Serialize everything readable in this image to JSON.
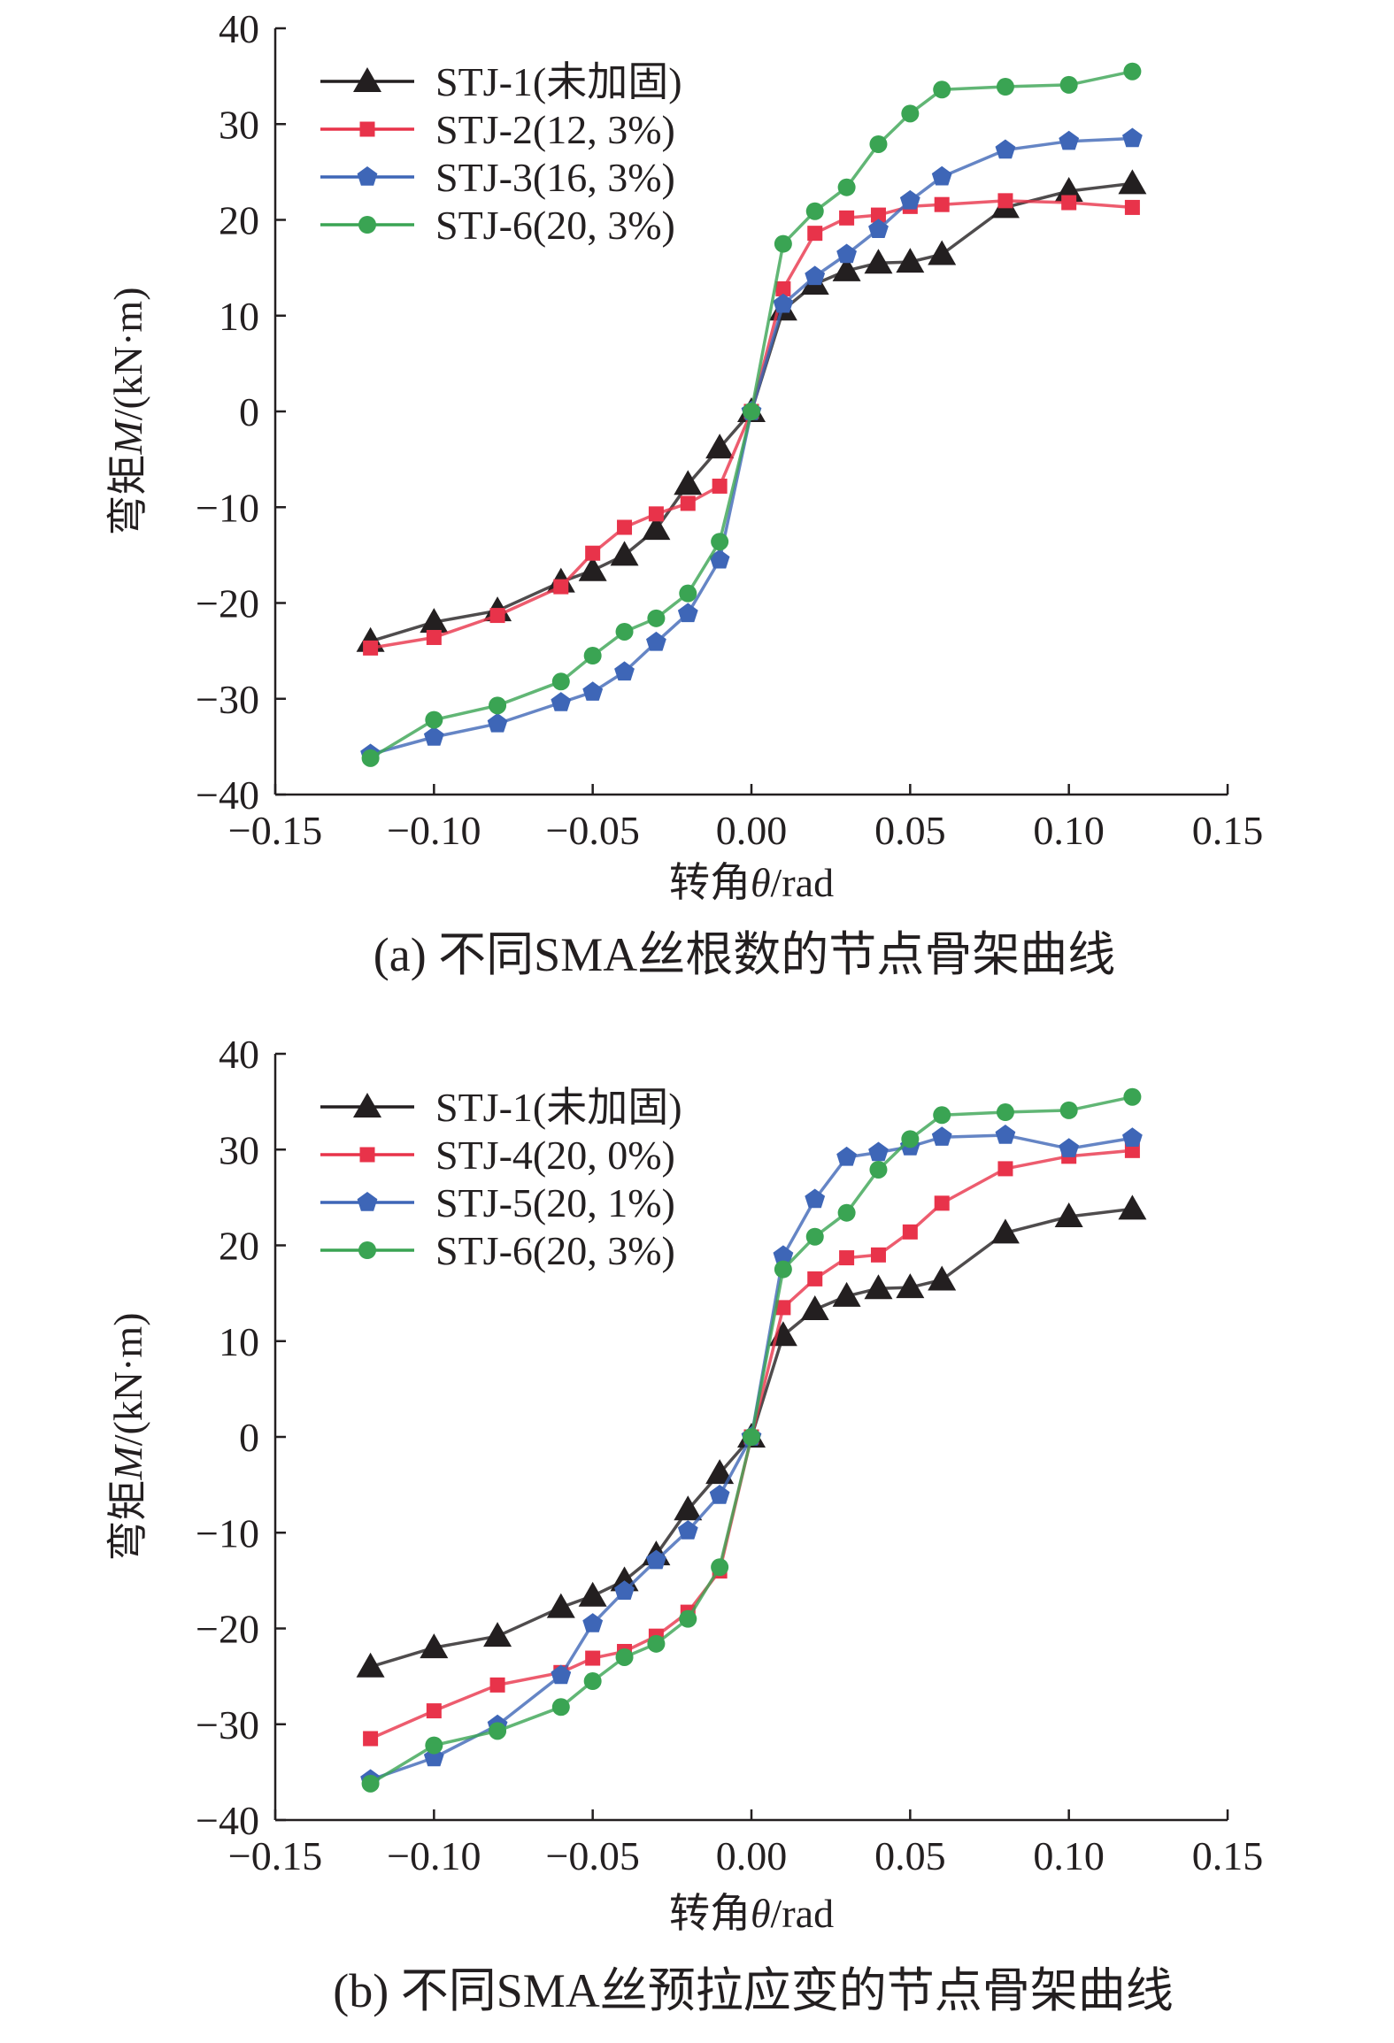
{
  "chart_data": [
    {
      "type": "line",
      "caption": "(a) 不同SMA丝根数的节点骨架曲线",
      "xlabel": {
        "prefix": "转角",
        "symbol": "θ",
        "suffix": "/rad"
      },
      "ylabel": {
        "prefix": "弯矩",
        "symbol": "M",
        "suffix": "/(kN·m)"
      },
      "xlim": [
        -0.15,
        0.15
      ],
      "ylim": [
        -40,
        40
      ],
      "xticks": [
        -0.15,
        -0.1,
        -0.05,
        0.0,
        0.05,
        0.1,
        0.15
      ],
      "xtick_labels": [
        "−0.15",
        "−0.10",
        "−0.05",
        "0.00",
        "0.05",
        "0.10",
        "0.15"
      ],
      "yticks": [
        -40,
        -30,
        -20,
        -10,
        0,
        10,
        20,
        30,
        40
      ],
      "ytick_labels": [
        "−40",
        "−30",
        "−20",
        "−10",
        "0",
        "10",
        "20",
        "30",
        "40"
      ],
      "legend_position": "top-left",
      "series": [
        {
          "name": "STJ-1(未加固)",
          "color": "#231f20",
          "marker": "triangle",
          "x": [
            -0.12,
            -0.1,
            -0.08,
            -0.06,
            -0.05,
            -0.04,
            -0.03,
            -0.02,
            -0.01,
            0.0,
            0.01,
            0.02,
            0.03,
            0.04,
            0.05,
            0.06,
            0.08,
            0.1,
            0.12
          ],
          "y": [
            -24.0,
            -22.0,
            -20.8,
            -17.8,
            -16.6,
            -15.0,
            -12.3,
            -7.6,
            -3.8,
            0,
            10.6,
            13.3,
            14.7,
            15.5,
            15.6,
            16.4,
            21.3,
            23.0,
            23.8
          ]
        },
        {
          "name": "STJ-2(12, 3%)",
          "color": "#e8334a",
          "marker": "square",
          "x": [
            -0.12,
            -0.1,
            -0.08,
            -0.06,
            -0.05,
            -0.04,
            -0.03,
            -0.02,
            -0.01,
            0.0,
            0.01,
            0.02,
            0.03,
            0.04,
            0.05,
            0.06,
            0.08,
            0.1,
            0.12
          ],
          "y": [
            -24.7,
            -23.6,
            -21.3,
            -18.3,
            -14.8,
            -12.1,
            -10.7,
            -9.6,
            -7.8,
            0,
            12.8,
            18.6,
            20.2,
            20.5,
            21.4,
            21.6,
            22.0,
            21.8,
            21.3
          ]
        },
        {
          "name": "STJ-3(16, 3%)",
          "color": "#3e66b7",
          "marker": "pentagon",
          "x": [
            -0.12,
            -0.1,
            -0.08,
            -0.06,
            -0.05,
            -0.04,
            -0.03,
            -0.02,
            -0.01,
            0.0,
            0.01,
            0.02,
            0.03,
            0.04,
            0.05,
            0.06,
            0.08,
            0.1,
            0.12
          ],
          "y": [
            -35.8,
            -34.0,
            -32.6,
            -30.4,
            -29.3,
            -27.2,
            -24.1,
            -21.1,
            -15.5,
            0,
            11.2,
            14.1,
            16.4,
            19.0,
            22.0,
            24.5,
            27.3,
            28.2,
            28.5
          ]
        },
        {
          "name": "STJ-6(20, 3%)",
          "color": "#3aa453",
          "marker": "circle",
          "x": [
            -0.12,
            -0.1,
            -0.08,
            -0.06,
            -0.05,
            -0.04,
            -0.03,
            -0.02,
            -0.01,
            0.0,
            0.01,
            0.02,
            0.03,
            0.04,
            0.05,
            0.06,
            0.08,
            0.1,
            0.12
          ],
          "y": [
            -36.2,
            -32.2,
            -30.7,
            -28.2,
            -25.5,
            -23.0,
            -21.6,
            -19.0,
            -13.6,
            0,
            17.5,
            20.9,
            23.4,
            27.9,
            31.1,
            33.6,
            33.9,
            34.1,
            35.5
          ]
        }
      ]
    },
    {
      "type": "line",
      "caption": "(b) 不同SMA丝预拉应变的节点骨架曲线",
      "xlabel": {
        "prefix": "转角",
        "symbol": "θ",
        "suffix": "/rad"
      },
      "ylabel": {
        "prefix": "弯矩",
        "symbol": "M",
        "suffix": "/(kN·m)"
      },
      "xlim": [
        -0.15,
        0.15
      ],
      "ylim": [
        -40,
        40
      ],
      "xticks": [
        -0.15,
        -0.1,
        -0.05,
        0.0,
        0.05,
        0.1,
        0.15
      ],
      "xtick_labels": [
        "−0.15",
        "−0.10",
        "−0.05",
        "0.00",
        "0.05",
        "0.10",
        "0.15"
      ],
      "yticks": [
        -40,
        -30,
        -20,
        -10,
        0,
        10,
        20,
        30,
        40
      ],
      "ytick_labels": [
        "−40",
        "−30",
        "−20",
        "−10",
        "0",
        "10",
        "20",
        "30",
        "40"
      ],
      "legend_position": "top-left",
      "series": [
        {
          "name": "STJ-1(未加固)",
          "color": "#231f20",
          "marker": "triangle",
          "x": [
            -0.12,
            -0.1,
            -0.08,
            -0.06,
            -0.05,
            -0.04,
            -0.03,
            -0.02,
            -0.01,
            0.0,
            0.01,
            0.02,
            0.03,
            0.04,
            0.05,
            0.06,
            0.08,
            0.1,
            0.12
          ],
          "y": [
            -24.0,
            -22.0,
            -20.8,
            -17.8,
            -16.6,
            -15.0,
            -12.3,
            -7.6,
            -3.8,
            0,
            10.6,
            13.3,
            14.7,
            15.5,
            15.6,
            16.4,
            21.3,
            23.0,
            23.8
          ]
        },
        {
          "name": "STJ-4(20, 0%)",
          "color": "#e8334a",
          "marker": "square",
          "x": [
            -0.12,
            -0.1,
            -0.08,
            -0.06,
            -0.05,
            -0.04,
            -0.03,
            -0.02,
            -0.01,
            0.0,
            0.01,
            0.02,
            0.03,
            0.04,
            0.05,
            0.06,
            0.08,
            0.1,
            0.12
          ],
          "y": [
            -31.5,
            -28.6,
            -25.9,
            -24.6,
            -23.1,
            -22.4,
            -20.8,
            -18.3,
            -14.0,
            0,
            13.5,
            16.5,
            18.7,
            19.0,
            21.4,
            24.4,
            28.0,
            29.3,
            29.9
          ]
        },
        {
          "name": "STJ-5(20, 1%)",
          "color": "#3e66b7",
          "marker": "pentagon",
          "x": [
            -0.12,
            -0.1,
            -0.08,
            -0.06,
            -0.05,
            -0.04,
            -0.03,
            -0.02,
            -0.01,
            0.0,
            0.01,
            0.02,
            0.03,
            0.04,
            0.05,
            0.06,
            0.08,
            0.1,
            0.12
          ],
          "y": [
            -35.8,
            -33.5,
            -30.1,
            -24.9,
            -19.5,
            -16.1,
            -12.9,
            -9.8,
            -6.1,
            0,
            18.9,
            24.8,
            29.2,
            29.7,
            30.3,
            31.3,
            31.5,
            30.1,
            31.2
          ]
        },
        {
          "name": "STJ-6(20, 3%)",
          "color": "#3aa453",
          "marker": "circle",
          "x": [
            -0.12,
            -0.1,
            -0.08,
            -0.06,
            -0.05,
            -0.04,
            -0.03,
            -0.02,
            -0.01,
            0.0,
            0.01,
            0.02,
            0.03,
            0.04,
            0.05,
            0.06,
            0.08,
            0.1,
            0.12
          ],
          "y": [
            -36.2,
            -32.2,
            -30.7,
            -28.2,
            -25.5,
            -23.0,
            -21.6,
            -19.0,
            -13.6,
            0,
            17.5,
            20.9,
            23.4,
            27.9,
            31.1,
            33.6,
            33.9,
            34.1,
            35.5
          ]
        }
      ]
    }
  ]
}
